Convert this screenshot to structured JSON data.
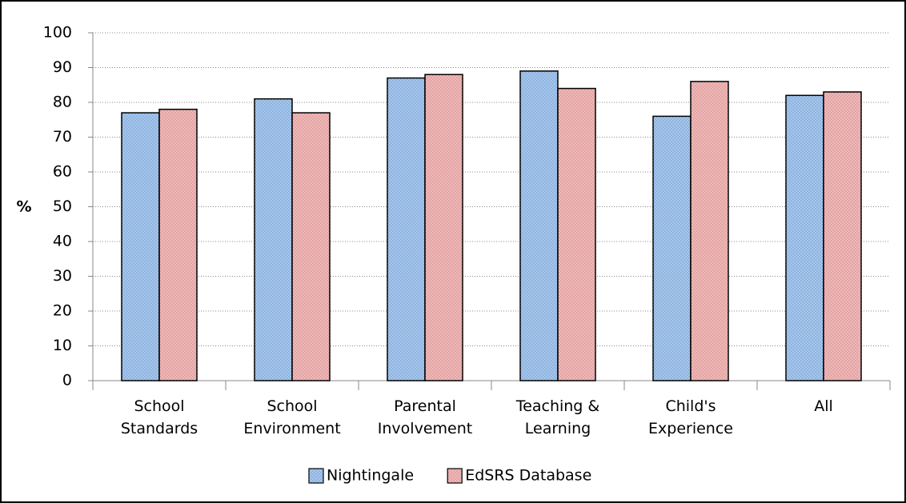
{
  "chart_data": {
    "type": "bar",
    "ylabel": "%",
    "categories": [
      "School\nStandards",
      "School\nEnvironment",
      "Parental\nInvolvement",
      "Teaching &\nLearning",
      "Child's\nExperience",
      "All"
    ],
    "series": [
      {
        "name": "Nightingale",
        "color": "#8db4e2",
        "values": [
          77,
          81,
          87,
          89,
          76,
          82
        ]
      },
      {
        "name": "EdSRS Database",
        "color": "#e6a3a3",
        "values": [
          78,
          77,
          88,
          84,
          86,
          83
        ]
      }
    ],
    "ylim": [
      0,
      100
    ],
    "yticks": [
      0,
      10,
      20,
      30,
      40,
      50,
      60,
      70,
      80,
      90,
      100
    ],
    "grid": true,
    "legend": "bottom"
  }
}
